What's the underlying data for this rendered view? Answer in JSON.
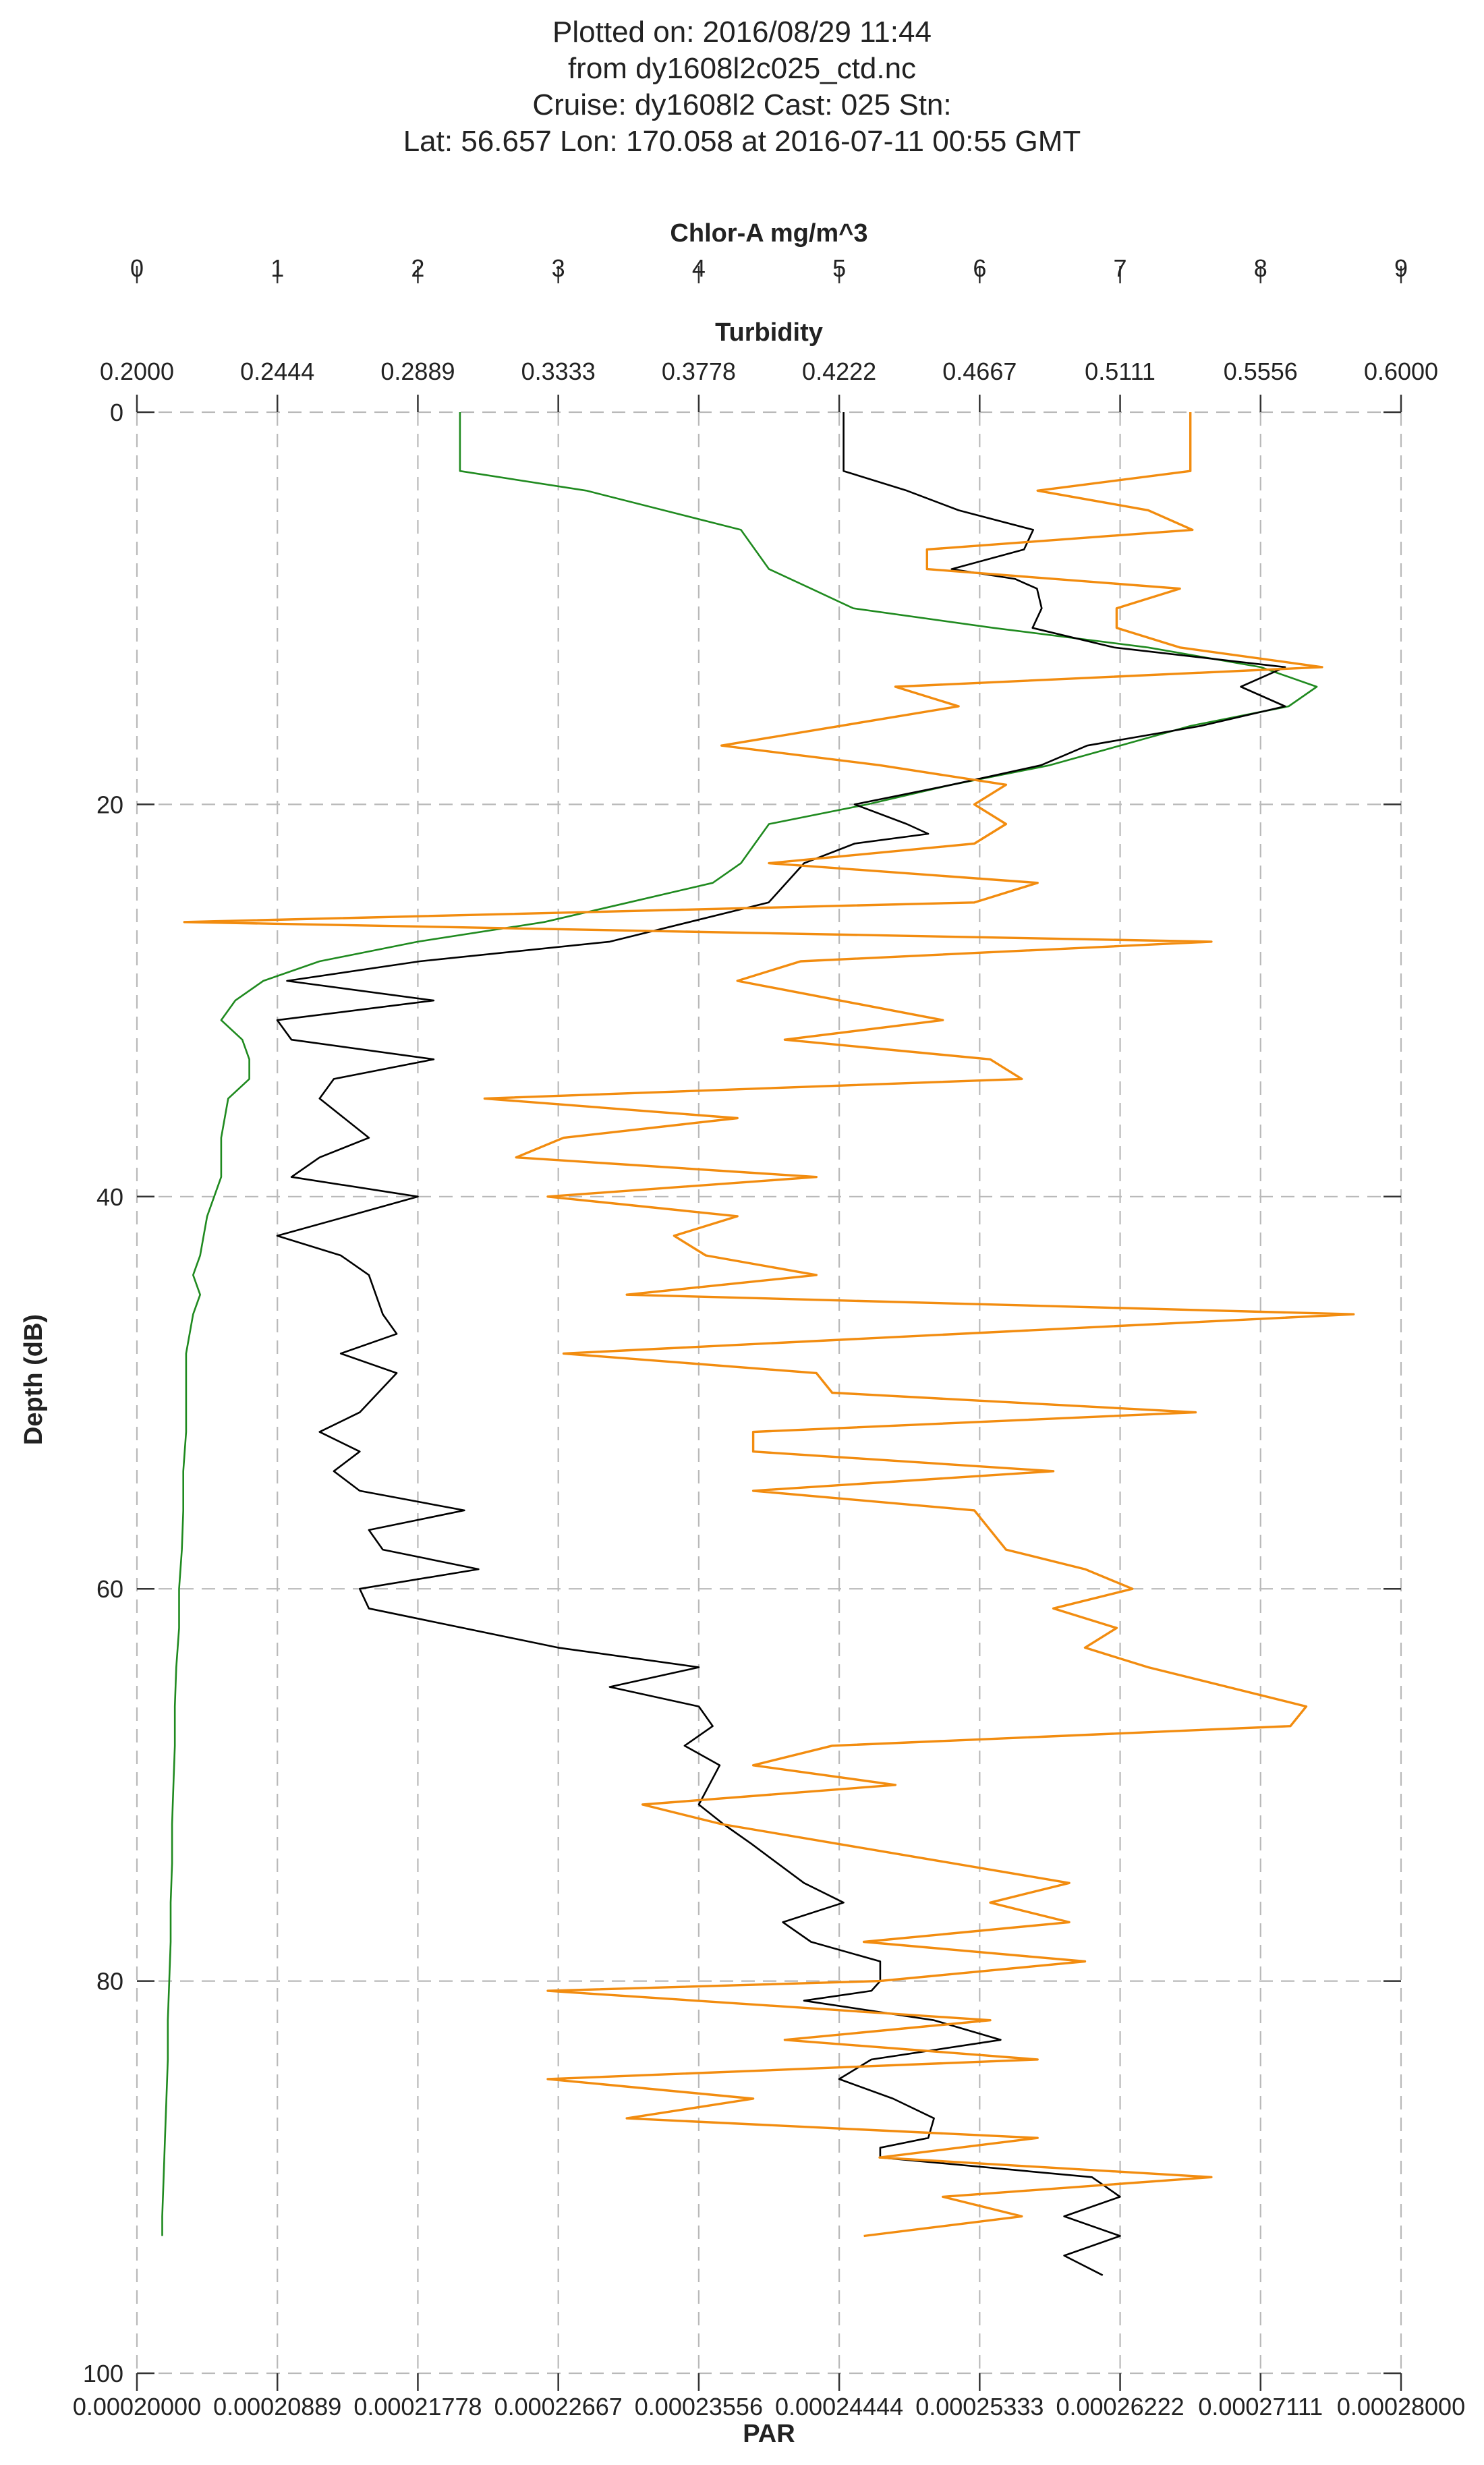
{
  "chart_data": {
    "type": "line",
    "title_lines": [
      "Plotted on: 2016/08/29 11:44",
      "from dy1608l2c025_ctd.nc",
      "Cruise: dy1608l2  Cast: 025  Stn:",
      "Lat: 56.657  Lon: 170.058 at 2016-07-11 00:55 GMT"
    ],
    "ylabel": "Depth (dB)",
    "ylim": [
      0,
      100
    ],
    "y_reversed": true,
    "y_ticks": [
      "0",
      "20",
      "40",
      "60",
      "80",
      "100"
    ],
    "grid": true,
    "axes": {
      "chlor": {
        "label": "Chlor-A mg/m^3",
        "position": "top",
        "range": [
          0,
          9
        ],
        "ticks": [
          "0",
          "1",
          "2",
          "3",
          "4",
          "5",
          "6",
          "7",
          "8",
          "9"
        ]
      },
      "turbidity": {
        "label": "Turbidity",
        "position": "top",
        "range": [
          0.2,
          0.6
        ],
        "ticks": [
          "0.2000",
          "0.2444",
          "0.2889",
          "0.3333",
          "0.3778",
          "0.4222",
          "0.4667",
          "0.5111",
          "0.5556",
          "0.6000"
        ]
      },
      "par": {
        "label": "PAR",
        "position": "bottom",
        "range": [
          0.0002,
          0.00028
        ],
        "ticks": [
          "0.00020000",
          "0.00020889",
          "0.00021778",
          "0.00022667",
          "0.00023556",
          "0.00024444",
          "0.00025333",
          "0.00026222",
          "0.00027111",
          "0.00028000"
        ]
      }
    },
    "series": [
      {
        "axis": "chlor",
        "color": "#1f8a1f",
        "points": [
          [
            2.3,
            0
          ],
          [
            2.3,
            3
          ],
          [
            3.2,
            4
          ],
          [
            4.3,
            6
          ],
          [
            4.5,
            8
          ],
          [
            4.8,
            9
          ],
          [
            5.1,
            10
          ],
          [
            6.1,
            11
          ],
          [
            7.2,
            12
          ],
          [
            8.0,
            13
          ],
          [
            8.4,
            14
          ],
          [
            8.2,
            15
          ],
          [
            7.5,
            16
          ],
          [
            7.0,
            17
          ],
          [
            6.5,
            18
          ],
          [
            5.8,
            19
          ],
          [
            5.2,
            20
          ],
          [
            4.5,
            21
          ],
          [
            4.4,
            22
          ],
          [
            4.3,
            23
          ],
          [
            4.1,
            24
          ],
          [
            3.5,
            25
          ],
          [
            2.9,
            26
          ],
          [
            2.0,
            27
          ],
          [
            1.3,
            28
          ],
          [
            0.9,
            29
          ],
          [
            0.7,
            30
          ],
          [
            0.6,
            31
          ],
          [
            0.75,
            32
          ],
          [
            0.8,
            33
          ],
          [
            0.8,
            34
          ],
          [
            0.65,
            35
          ],
          [
            0.6,
            37
          ],
          [
            0.6,
            39
          ],
          [
            0.55,
            40
          ],
          [
            0.5,
            41
          ],
          [
            0.45,
            43
          ],
          [
            0.4,
            44
          ],
          [
            0.45,
            45
          ],
          [
            0.4,
            46
          ],
          [
            0.35,
            48
          ],
          [
            0.35,
            50
          ],
          [
            0.35,
            52
          ],
          [
            0.33,
            54
          ],
          [
            0.33,
            56
          ],
          [
            0.32,
            58
          ],
          [
            0.3,
            60
          ],
          [
            0.3,
            62
          ],
          [
            0.28,
            64
          ],
          [
            0.27,
            66
          ],
          [
            0.27,
            68
          ],
          [
            0.26,
            70
          ],
          [
            0.25,
            72
          ],
          [
            0.25,
            74
          ],
          [
            0.24,
            76
          ],
          [
            0.24,
            78
          ],
          [
            0.23,
            80
          ],
          [
            0.22,
            82
          ],
          [
            0.22,
            84
          ],
          [
            0.21,
            86
          ],
          [
            0.2,
            88
          ],
          [
            0.19,
            90
          ],
          [
            0.18,
            92
          ],
          [
            0.18,
            93
          ]
        ]
      },
      {
        "axis": "turbidity",
        "color": "#000000",
        "points": [
          [
            0.4236,
            0
          ],
          [
            0.4236,
            1.5
          ],
          [
            0.4236,
            3
          ],
          [
            0.4436,
            4
          ],
          [
            0.46,
            5
          ],
          [
            0.4836,
            6
          ],
          [
            0.4807,
            7
          ],
          [
            0.4578,
            8
          ],
          [
            0.4778,
            8.5
          ],
          [
            0.4848,
            9
          ],
          [
            0.4863,
            10
          ],
          [
            0.4834,
            11
          ],
          [
            0.5093,
            12
          ],
          [
            0.5633,
            13
          ],
          [
            0.5493,
            14
          ],
          [
            0.5633,
            15
          ],
          [
            0.5366,
            16
          ],
          [
            0.5007,
            17
          ],
          [
            0.4861,
            18
          ],
          [
            0.4578,
            19
          ],
          [
            0.4271,
            20
          ],
          [
            0.4436,
            21
          ],
          [
            0.4504,
            21.5
          ],
          [
            0.4271,
            22
          ],
          [
            0.4111,
            23
          ],
          [
            0.3999,
            25
          ],
          [
            0.3496,
            27
          ],
          [
            0.2895,
            28
          ],
          [
            0.2475,
            29
          ],
          [
            0.2939,
            30
          ],
          [
            0.2444,
            31
          ],
          [
            0.2489,
            32
          ],
          [
            0.2939,
            33
          ],
          [
            0.2623,
            34
          ],
          [
            0.2578,
            35
          ],
          [
            0.2734,
            37
          ],
          [
            0.2578,
            38
          ],
          [
            0.2489,
            39
          ],
          [
            0.2889,
            40
          ],
          [
            0.2667,
            41
          ],
          [
            0.2444,
            42
          ],
          [
            0.2645,
            43
          ],
          [
            0.2734,
            44
          ],
          [
            0.2778,
            46
          ],
          [
            0.2822,
            47
          ],
          [
            0.2645,
            48
          ],
          [
            0.2822,
            49
          ],
          [
            0.2705,
            51
          ],
          [
            0.2578,
            52
          ],
          [
            0.2705,
            53
          ],
          [
            0.2623,
            54
          ],
          [
            0.2705,
            55
          ],
          [
            0.3036,
            56
          ],
          [
            0.2734,
            57
          ],
          [
            0.2778,
            58
          ],
          [
            0.3081,
            59
          ],
          [
            0.2705,
            60
          ],
          [
            0.2734,
            61
          ],
          [
            0.3333,
            63
          ],
          [
            0.3778,
            64
          ],
          [
            0.3496,
            65
          ],
          [
            0.3778,
            66
          ],
          [
            0.3822,
            67
          ],
          [
            0.3733,
            68
          ],
          [
            0.3844,
            69
          ],
          [
            0.3778,
            71
          ],
          [
            0.3856,
            72
          ],
          [
            0.3944,
            73
          ],
          [
            0.4111,
            75
          ],
          [
            0.4236,
            76
          ],
          [
            0.4044,
            77
          ],
          [
            0.4133,
            78
          ],
          [
            0.4352,
            79
          ],
          [
            0.4352,
            80
          ],
          [
            0.4324,
            80.5
          ],
          [
            0.4111,
            81
          ],
          [
            0.4522,
            82
          ],
          [
            0.4733,
            83
          ],
          [
            0.4324,
            84
          ],
          [
            0.4222,
            85
          ],
          [
            0.4393,
            86
          ],
          [
            0.4522,
            87
          ],
          [
            0.4504,
            88
          ],
          [
            0.4352,
            88.5
          ],
          [
            0.4352,
            89
          ],
          [
            0.5022,
            90
          ],
          [
            0.5111,
            91
          ],
          [
            0.4934,
            92
          ],
          [
            0.5111,
            93
          ],
          [
            0.4934,
            94
          ],
          [
            0.5056,
            95
          ]
        ]
      },
      {
        "axis": "par",
        "color": "#f28c0f",
        "points": [
          [
            0.00026667,
            0
          ],
          [
            0.00026667,
            1.5
          ],
          [
            0.00026667,
            3
          ],
          [
            0.000257,
            4
          ],
          [
            0.000264,
            5
          ],
          [
            0.0002668,
            6
          ],
          [
            0.00025,
            7
          ],
          [
            0.00025,
            8
          ],
          [
            0.000266,
            9
          ],
          [
            0.000262,
            10
          ],
          [
            0.000262,
            11
          ],
          [
            0.000266,
            12
          ],
          [
            0.000275,
            13
          ],
          [
            0.000248,
            14
          ],
          [
            0.000252,
            15
          ],
          [
            0.000237,
            17
          ],
          [
            0.000247,
            18
          ],
          [
            0.000255,
            19
          ],
          [
            0.000253,
            20
          ],
          [
            0.000255,
            21
          ],
          [
            0.000253,
            22
          ],
          [
            0.00024,
            23
          ],
          [
            0.000257,
            24
          ],
          [
            0.000253,
            25
          ],
          [
            0.000203,
            26
          ],
          [
            0.000268,
            27
          ],
          [
            0.000242,
            28
          ],
          [
            0.000238,
            29
          ],
          [
            0.000251,
            31
          ],
          [
            0.000241,
            32
          ],
          [
            0.000254,
            33
          ],
          [
            0.000256,
            34
          ],
          [
            0.000222,
            35
          ],
          [
            0.000238,
            36
          ],
          [
            0.000227,
            37
          ],
          [
            0.000224,
            38
          ],
          [
            0.000243,
            39
          ],
          [
            0.000226,
            40
          ],
          [
            0.000238,
            41
          ],
          [
            0.000234,
            42
          ],
          [
            0.000236,
            43
          ],
          [
            0.000243,
            44
          ],
          [
            0.000231,
            45
          ],
          [
            0.000277,
            46
          ],
          [
            0.000227,
            48
          ],
          [
            0.000243,
            49
          ],
          [
            0.000244,
            50
          ],
          [
            0.000267,
            51
          ],
          [
            0.000239,
            52
          ],
          [
            0.000239,
            53
          ],
          [
            0.000258,
            54
          ],
          [
            0.000239,
            55
          ],
          [
            0.000253,
            56
          ],
          [
            0.000255,
            58
          ],
          [
            0.00026,
            59
          ],
          [
            0.000263,
            60
          ],
          [
            0.000258,
            61
          ],
          [
            0.000262,
            62
          ],
          [
            0.00026,
            63
          ],
          [
            0.000264,
            64
          ],
          [
            0.000274,
            66
          ],
          [
            0.000273,
            67
          ],
          [
            0.000244,
            68
          ],
          [
            0.000239,
            69
          ],
          [
            0.000248,
            70
          ],
          [
            0.000232,
            71
          ],
          [
            0.000237,
            72
          ],
          [
            0.000259,
            75
          ],
          [
            0.000254,
            76
          ],
          [
            0.000259,
            77
          ],
          [
            0.000246,
            78
          ],
          [
            0.00026,
            79
          ],
          [
            0.000247,
            80
          ],
          [
            0.000226,
            80.5
          ],
          [
            0.000254,
            82
          ],
          [
            0.000241,
            83
          ],
          [
            0.000257,
            84
          ],
          [
            0.000226,
            85
          ],
          [
            0.000239,
            86
          ],
          [
            0.000231,
            87
          ],
          [
            0.000257,
            88
          ],
          [
            0.000247,
            89
          ],
          [
            0.000268,
            90
          ],
          [
            0.000251,
            91
          ],
          [
            0.000256,
            92
          ],
          [
            0.000246,
            93
          ]
        ]
      }
    ]
  }
}
